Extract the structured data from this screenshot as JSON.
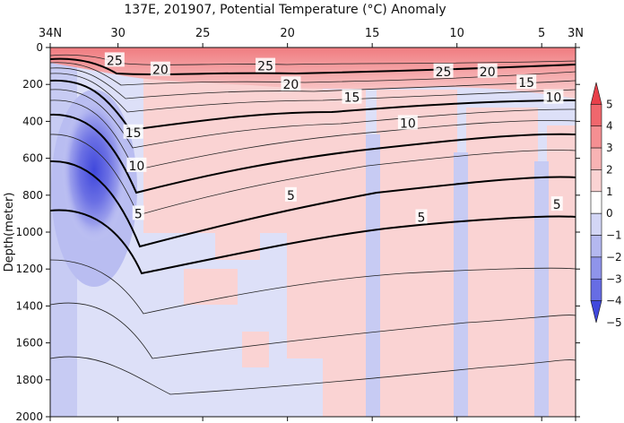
{
  "chart_data": {
    "type": "heatmap",
    "title": "137E, 201907, Potential Temperature (°C) Anomaly",
    "ylabel": "Depth(meter)",
    "xlabel": "",
    "x_ticks": [
      "34N",
      "30",
      "25",
      "20",
      "15",
      "10",
      "5",
      "3N"
    ],
    "x_tick_values": [
      34,
      30,
      25,
      20,
      15,
      10,
      5,
      3
    ],
    "xlim": [
      34,
      3
    ],
    "y_ticks": [
      0,
      200,
      400,
      600,
      800,
      1000,
      1200,
      1400,
      1600,
      1800,
      2000
    ],
    "ylim": [
      0,
      2000
    ],
    "colorbar": {
      "ticks": [
        5,
        4,
        3,
        2,
        1,
        0,
        -1,
        -2,
        -3,
        -4,
        -5
      ],
      "labels": [
        "5",
        "4",
        "3",
        "2",
        "1",
        "0",
        "−1",
        "−2",
        "−3",
        "−4",
        "−5"
      ],
      "colors": [
        "#e8404a",
        "#f0676d",
        "#f58f92",
        "#f8b3b4",
        "#fad3d3",
        "#ffffff",
        "#d3d6f6",
        "#b4b8f0",
        "#8f94ea",
        "#676de4",
        "#4048dc"
      ]
    },
    "isotherm_labels": [
      {
        "label": "25",
        "lat": 30.2,
        "depth": 70
      },
      {
        "label": "20",
        "lat": 27.5,
        "depth": 120
      },
      {
        "label": "25",
        "lat": 21.3,
        "depth": 100
      },
      {
        "label": "20",
        "lat": 19.8,
        "depth": 200
      },
      {
        "label": "25",
        "lat": 10.8,
        "depth": 130
      },
      {
        "label": "20",
        "lat": 8.2,
        "depth": 130
      },
      {
        "label": "15",
        "lat": 16.2,
        "depth": 270
      },
      {
        "label": "15",
        "lat": 5.9,
        "depth": 190
      },
      {
        "label": "10",
        "lat": 4.3,
        "depth": 270
      },
      {
        "label": "10",
        "lat": 12.9,
        "depth": 410
      },
      {
        "label": "15",
        "lat": 29.1,
        "depth": 460
      },
      {
        "label": "10",
        "lat": 28.9,
        "depth": 640
      },
      {
        "label": "5",
        "lat": 19.8,
        "depth": 800
      },
      {
        "label": "5",
        "lat": 28.8,
        "depth": 900
      },
      {
        "label": "5",
        "lat": 12.1,
        "depth": 920
      },
      {
        "label": "5",
        "lat": 4.1,
        "depth": 850
      }
    ],
    "anomaly_features": [
      {
        "sign": "negative",
        "value": -4,
        "lat_range": [
          32.0,
          29.8
        ],
        "depth_range": [
          80,
          750
        ]
      },
      {
        "sign": "negative",
        "value": -2,
        "lat_range": [
          32.8,
          29.3
        ],
        "depth_range": [
          300,
          1200
        ]
      },
      {
        "sign": "positive",
        "value": 2,
        "lat_range": [
          33.5,
          3.5
        ],
        "depth_range": [
          0,
          150
        ]
      },
      {
        "sign": "positive",
        "value": 1,
        "lat_range": [
          14.5,
          3.5
        ],
        "depth_range": [
          150,
          2000
        ]
      }
    ]
  }
}
